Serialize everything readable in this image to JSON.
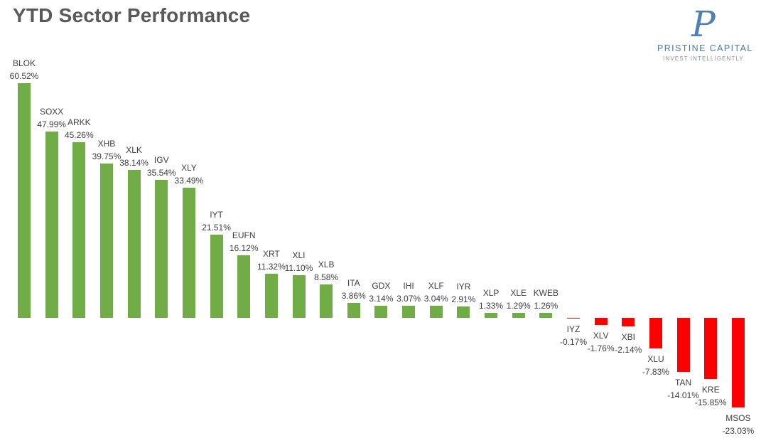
{
  "header": {
    "title": "YTD Sector Performance"
  },
  "logo": {
    "monogram": "P",
    "name": "PRISTINE CAPITAL",
    "tagline": "INVEST INTELLIGENTLY",
    "accent_color": "#4d81b5"
  },
  "chart_data": {
    "type": "bar",
    "title": "YTD Sector Performance",
    "categories": [
      "BLOK",
      "SOXX",
      "ARKK",
      "XHB",
      "XLK",
      "IGV",
      "XLY",
      "IYT",
      "EUFN",
      "XRT",
      "XLI",
      "XLB",
      "ITA",
      "GDX",
      "IHI",
      "XLF",
      "IYR",
      "XLP",
      "XLE",
      "KWEB",
      "IYZ",
      "XLV",
      "XBI",
      "XLU",
      "TAN",
      "KRE",
      "MSOS"
    ],
    "values": [
      60.52,
      47.99,
      45.26,
      39.75,
      38.14,
      35.54,
      33.49,
      21.51,
      16.12,
      11.32,
      11.1,
      8.58,
      3.86,
      3.14,
      3.07,
      3.04,
      2.91,
      1.33,
      1.29,
      1.26,
      -0.17,
      -1.76,
      -2.14,
      -7.83,
      -14.01,
      -15.85,
      -23.03
    ],
    "labels": [
      "60.52%",
      "47.99%",
      "45.26%",
      "39.75%",
      "38.14%",
      "35.54%",
      "33.49%",
      "21.51%",
      "16.12%",
      "11.32%",
      "11.10%",
      "8.58%",
      "3.86%",
      "3.14%",
      "3.07%",
      "3.04%",
      "2.91%",
      "1.33%",
      "1.29%",
      "1.26%",
      "-0.17%",
      "-1.76%",
      "-2.14%",
      "-7.83%",
      "-14.01%",
      "-15.85%",
      "-23.03%"
    ],
    "xlabel": "",
    "ylabel": "",
    "ylim": [
      -25,
      62
    ],
    "grid": false,
    "legend": false,
    "axis_lines": false,
    "positive_color": "#70AD47",
    "negative_color": "#FF0000",
    "data_label_color": "#404040"
  }
}
